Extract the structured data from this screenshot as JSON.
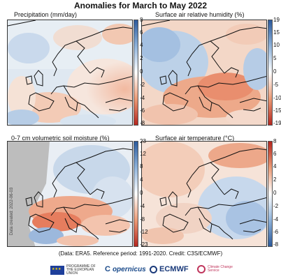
{
  "title": "Anomalies for March to May 2022",
  "side_credit": "Data created: 2022-06-03",
  "footnote": "(Data: ERA5.  Reference period: 1991-2020.  Credit: C3S/ECMWF)",
  "logos": {
    "eu": "PROGRAMME OF THE EUROPEAN UNION",
    "copernicus": "opernicus",
    "ecmwf": "ECMWF",
    "c3s": "Climate Change Service"
  },
  "chart_data": [
    {
      "type": "heatmap",
      "title": "Precipitation (mm/day)",
      "colorbar_ticks": [
        "8",
        "6",
        "4",
        "2",
        "0",
        "-2",
        "-4",
        "-6",
        "-8"
      ],
      "colorbar_range": [
        -8,
        8
      ],
      "colorscale": "red-white-blue"
    },
    {
      "type": "heatmap",
      "title": "Surface air relative humidity (%)",
      "colorbar_ticks": [
        "19",
        "15",
        "10",
        "5",
        "0",
        "-5",
        "-10",
        "-15",
        "-19"
      ],
      "colorbar_range": [
        -19,
        19
      ],
      "colorscale": "red-white-blue"
    },
    {
      "type": "heatmap",
      "title": "0-7 cm volumetric soil moisture (%)",
      "colorbar_ticks": [
        "23",
        "12",
        "8",
        "4",
        "0",
        "-4",
        "-8",
        "-12",
        "-23"
      ],
      "colorbar_range": [
        -23,
        23
      ],
      "colorscale": "red-white-blue"
    },
    {
      "type": "heatmap",
      "title": "Surface air temperature (°C)",
      "colorbar_ticks": [
        "8",
        "6",
        "4",
        "2",
        "0",
        "-2",
        "-4",
        "-6",
        "-8"
      ],
      "colorbar_range": [
        -8,
        8
      ],
      "colorscale": "blue-white-red"
    }
  ]
}
